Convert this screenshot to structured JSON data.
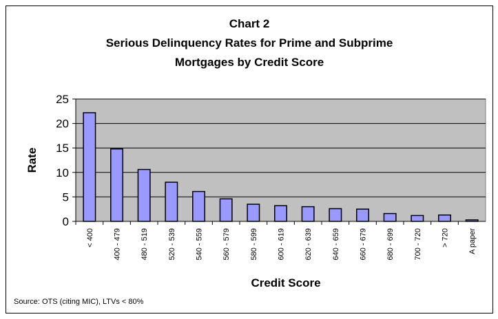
{
  "chart_data": {
    "type": "bar",
    "title": [
      "Chart 2",
      "Serious  Delinquency Rates for Prime and Subprime",
      "Mortgages by Credit Score"
    ],
    "x_label": "Credit Score",
    "y_label": "Rate",
    "categories": [
      "< 400",
      "400 - 479",
      "480 - 519",
      "520 - 539",
      "540 - 559",
      "560 - 579",
      "580 - 599",
      "600 - 619",
      "620 - 639",
      "640 - 659",
      "660 - 679",
      "680 - 699",
      "700 - 720",
      "> 720",
      "A paper"
    ],
    "values": [
      22.2,
      14.8,
      10.6,
      8.0,
      6.1,
      4.6,
      3.5,
      3.2,
      3.0,
      2.6,
      2.5,
      1.6,
      1.2,
      1.3,
      0.3
    ],
    "color": "#9999ff",
    "ylim": [
      0,
      25
    ],
    "yticks": [
      0,
      5,
      10,
      15,
      20,
      25
    ],
    "grid": true,
    "source": "Source: OTS (citing MIC), LTVs < 80%"
  }
}
